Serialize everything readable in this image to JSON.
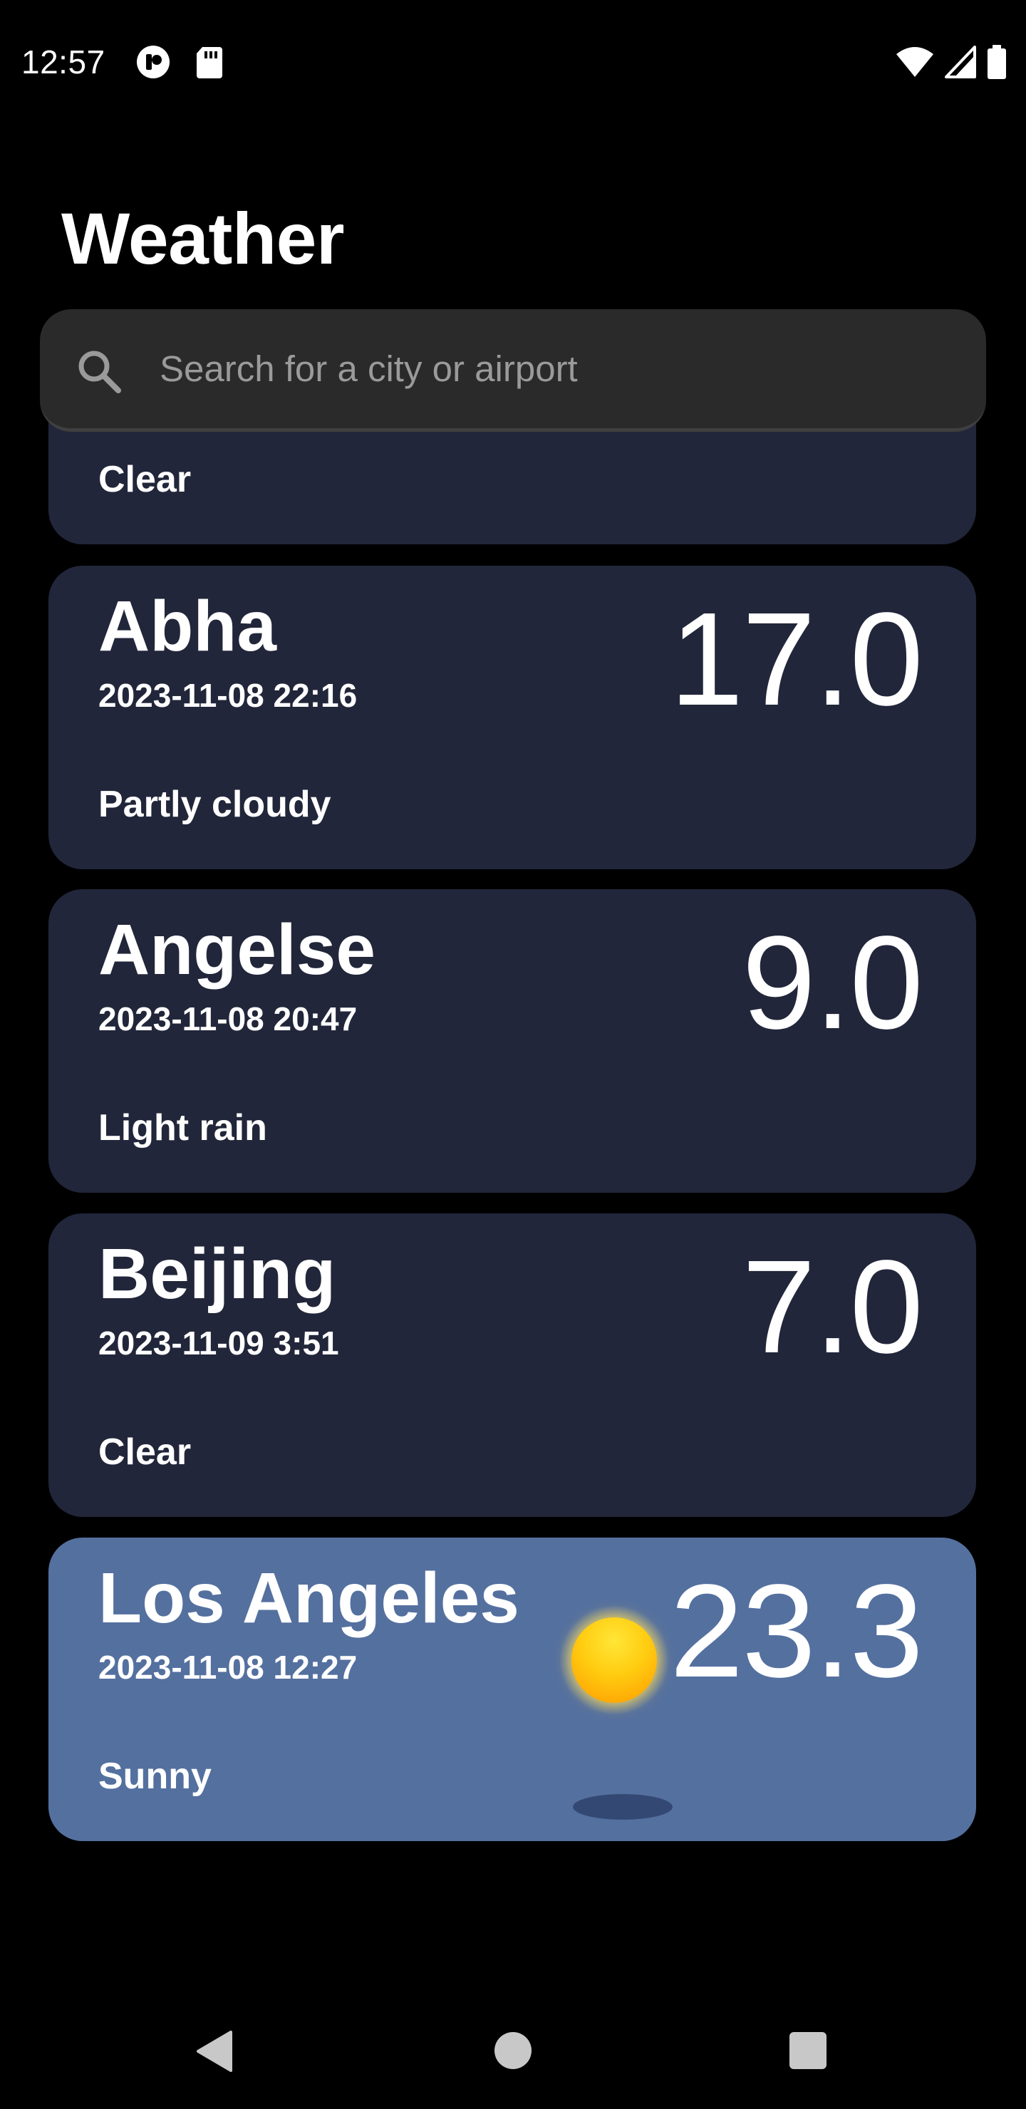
{
  "status_bar": {
    "time": "12:57",
    "left_icons": [
      "media-notification-icon",
      "sd-card-icon"
    ],
    "right_icons": [
      "wifi-icon",
      "cellular-signal-icon",
      "battery-icon"
    ]
  },
  "header": {
    "title": "Weather"
  },
  "search": {
    "placeholder": "Search for a city or airport",
    "icon": "search-icon"
  },
  "cities": [
    {
      "city": "",
      "time": "",
      "condition": "Clear",
      "temp": "",
      "partial": true
    },
    {
      "city": "Abha",
      "time": "2023-11-08 22:16",
      "condition": "Partly cloudy",
      "temp": "17.0"
    },
    {
      "city": "Angelse",
      "time": "2023-11-08 20:47",
      "condition": "Light rain",
      "temp": "9.0"
    },
    {
      "city": "Beijing",
      "time": "2023-11-09 3:51",
      "condition": "Clear",
      "temp": "7.0"
    },
    {
      "city": "Los Angeles",
      "time": "2023-11-08 12:27",
      "condition": "Sunny",
      "temp": "23.3",
      "weather_icon": "sun-icon"
    }
  ],
  "colors": {
    "background": "#000000",
    "card": "#22263a",
    "card_highlight": "#54709f",
    "search_bg": "#2a2a2a",
    "placeholder": "#9a9a9a"
  },
  "nav_bar": {
    "buttons": [
      "back-icon",
      "home-icon",
      "recents-icon"
    ]
  }
}
